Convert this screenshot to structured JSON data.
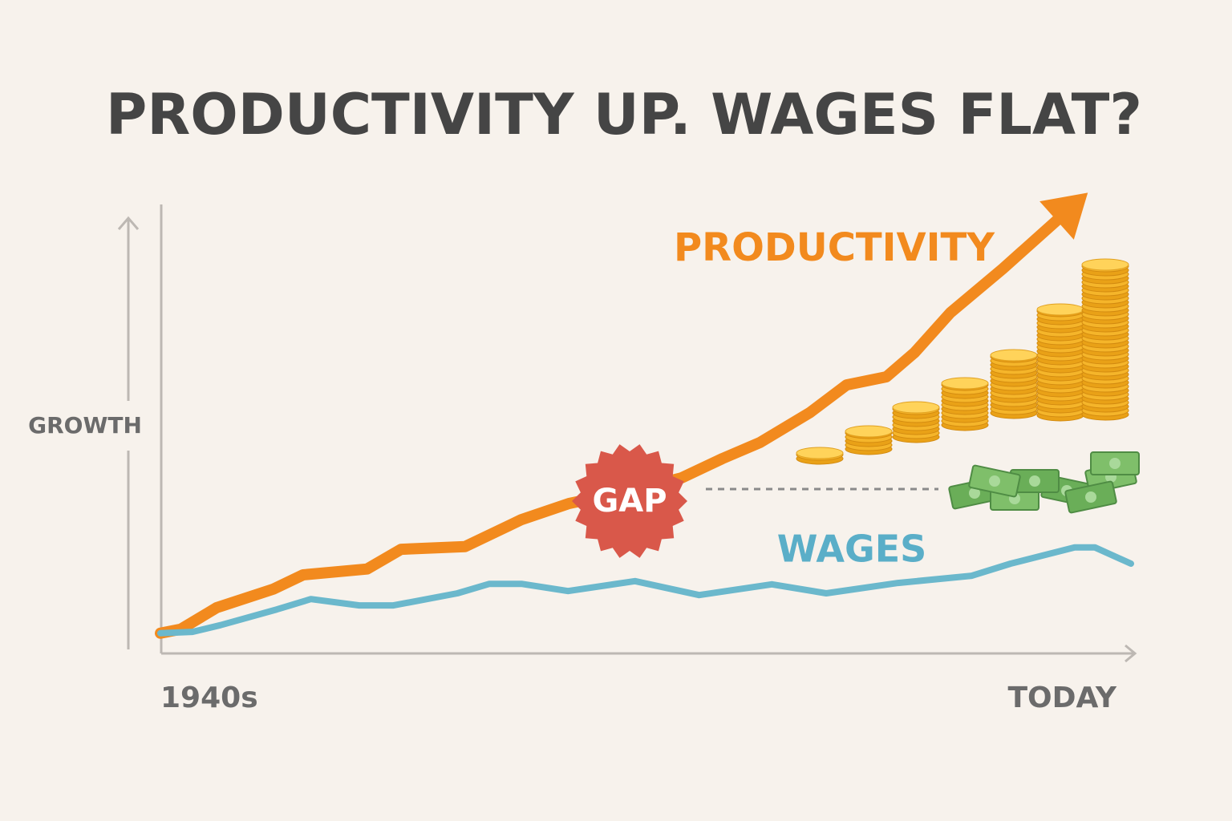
{
  "chart_data": {
    "type": "line",
    "title": "PRODUCTIVITY UP. WAGES FLAT?",
    "y_label": "GROWTH",
    "x_start_label": "1940s",
    "x_end_label": "TODAY",
    "annotation": "GAP",
    "xlim": [
      0,
      100
    ],
    "ylim": [
      0,
      100
    ],
    "series": [
      {
        "name": "PRODUCTIVITY",
        "color": "#f28a1e",
        "x": [
          0,
          2.1,
          5.8,
          11.6,
          14.7,
          21.3,
          24.8,
          31.4,
          37.2,
          42.1,
          48.3,
          53.7,
          57.9,
          61.8,
          66.9,
          70.7,
          74.8,
          77.7,
          81.4,
          86.8,
          94.2
        ],
        "values": [
          4.5,
          5.4,
          10.2,
          14.3,
          17.5,
          18.8,
          23.2,
          23.8,
          29.8,
          33.4,
          36.2,
          39.1,
          43.4,
          47.0,
          53.6,
          59.8,
          61.6,
          67.0,
          75.9,
          85.7,
          100
        ]
      },
      {
        "name": "WAGES",
        "color": "#6bb8cc",
        "x": [
          0,
          3.3,
          6.2,
          12.0,
          15.5,
          20.5,
          24.0,
          30.6,
          33.9,
          37.2,
          42.0,
          48.9,
          55.5,
          63.0,
          68.6,
          76.0,
          83.6,
          87.6,
          94.2,
          96.3,
          100
        ],
        "values": [
          4.5,
          4.8,
          6.3,
          9.8,
          12.1,
          10.7,
          10.7,
          13.4,
          15.5,
          15.5,
          13.9,
          16.1,
          13.0,
          15.4,
          13.4,
          15.7,
          17.3,
          20.0,
          23.6,
          23.6,
          20.0
        ]
      }
    ]
  }
}
